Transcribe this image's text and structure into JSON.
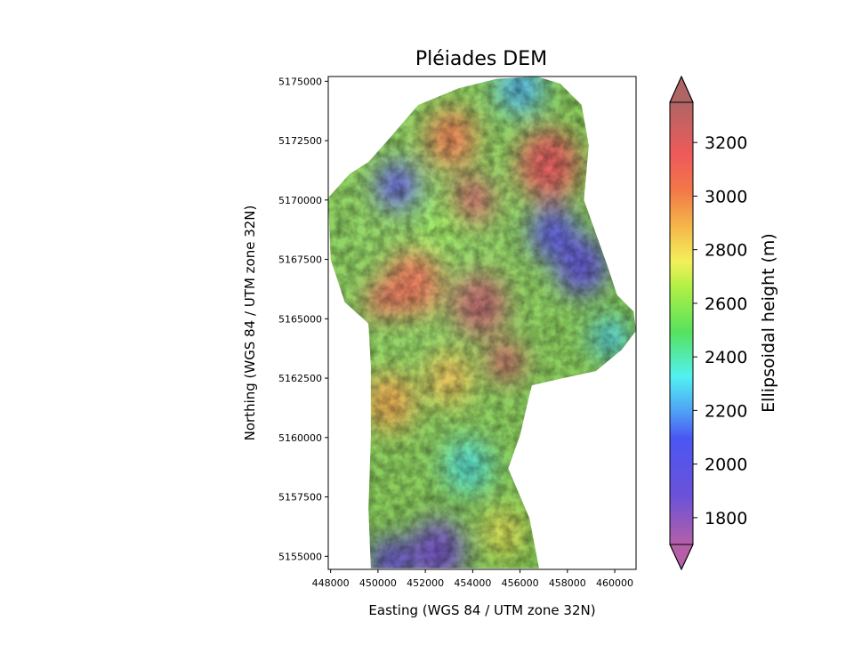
{
  "chart_data": {
    "type": "heatmap",
    "title": "Pléiades DEM",
    "xlabel": "Easting (WGS 84 / UTM zone 32N)",
    "ylabel": "Northing (WGS 84 / UTM zone 32N)",
    "xlim": [
      447900,
      460900
    ],
    "ylim": [
      5154450,
      5175200
    ],
    "xticks": [
      448000,
      450000,
      452000,
      454000,
      456000,
      458000,
      460000
    ],
    "yticks": [
      5155000,
      5157500,
      5160000,
      5162500,
      5165000,
      5167500,
      5170000,
      5172500,
      5175000
    ],
    "colorbar": {
      "label": "Ellipsoidal height (m)",
      "extend": "both",
      "range": [
        1700,
        3350
      ],
      "ticks": [
        1800,
        2000,
        2200,
        2400,
        2600,
        2800,
        3000,
        3200
      ]
    },
    "footprint": [
      [
        449700,
        5154500
      ],
      [
        456800,
        5154500
      ],
      [
        456400,
        5156600
      ],
      [
        455500,
        5158700
      ],
      [
        456000,
        5160100
      ],
      [
        456400,
        5161800
      ],
      [
        456500,
        5162200
      ],
      [
        457800,
        5162500
      ],
      [
        459200,
        5162800
      ],
      [
        460300,
        5163700
      ],
      [
        460900,
        5164500
      ],
      [
        460800,
        5165300
      ],
      [
        460100,
        5166000
      ],
      [
        459700,
        5167200
      ],
      [
        458700,
        5170000
      ],
      [
        458900,
        5172300
      ],
      [
        458600,
        5174000
      ],
      [
        457700,
        5174900
      ],
      [
        456700,
        5175200
      ],
      [
        455000,
        5175100
      ],
      [
        453400,
        5174700
      ],
      [
        451700,
        5174000
      ],
      [
        450400,
        5172500
      ],
      [
        449600,
        5171600
      ],
      [
        448800,
        5171100
      ],
      [
        447900,
        5170100
      ],
      [
        448000,
        5167500
      ],
      [
        448600,
        5165700
      ],
      [
        449600,
        5164800
      ],
      [
        449700,
        5163000
      ],
      [
        449700,
        5160000
      ],
      [
        449600,
        5157000
      ]
    ],
    "terrain": [
      {
        "x": 454300,
        "y": 5165600,
        "h": 3300,
        "r": 1200
      },
      {
        "x": 455400,
        "y": 5163200,
        "h": 3250,
        "r": 800
      },
      {
        "x": 454000,
        "y": 5170000,
        "h": 3250,
        "r": 900
      },
      {
        "x": 457200,
        "y": 5171500,
        "h": 3150,
        "r": 1300
      },
      {
        "x": 451500,
        "y": 5166500,
        "h": 3050,
        "r": 1200
      },
      {
        "x": 450200,
        "y": 5165800,
        "h": 3100,
        "r": 700
      },
      {
        "x": 453100,
        "y": 5172600,
        "h": 3000,
        "r": 1100
      },
      {
        "x": 450500,
        "y": 5161500,
        "h": 2900,
        "r": 1100
      },
      {
        "x": 453000,
        "y": 5162500,
        "h": 2850,
        "r": 1000
      },
      {
        "x": 455300,
        "y": 5156000,
        "h": 2750,
        "r": 900
      },
      {
        "x": 450800,
        "y": 5170600,
        "h": 2000,
        "r": 900
      },
      {
        "x": 458600,
        "y": 5167200,
        "h": 1950,
        "r": 1100
      },
      {
        "x": 457400,
        "y": 5168600,
        "h": 2000,
        "r": 1000
      },
      {
        "x": 452500,
        "y": 5155200,
        "h": 1850,
        "r": 1200
      },
      {
        "x": 450500,
        "y": 5154800,
        "h": 1900,
        "r": 900
      },
      {
        "x": 456000,
        "y": 5174700,
        "h": 2250,
        "r": 1000
      },
      {
        "x": 453800,
        "y": 5158800,
        "h": 2350,
        "r": 1000
      },
      {
        "x": 459800,
        "y": 5164200,
        "h": 2300,
        "r": 800
      },
      {
        "x": 452600,
        "y": 5168900,
        "h": 2600,
        "r": 900
      }
    ]
  }
}
